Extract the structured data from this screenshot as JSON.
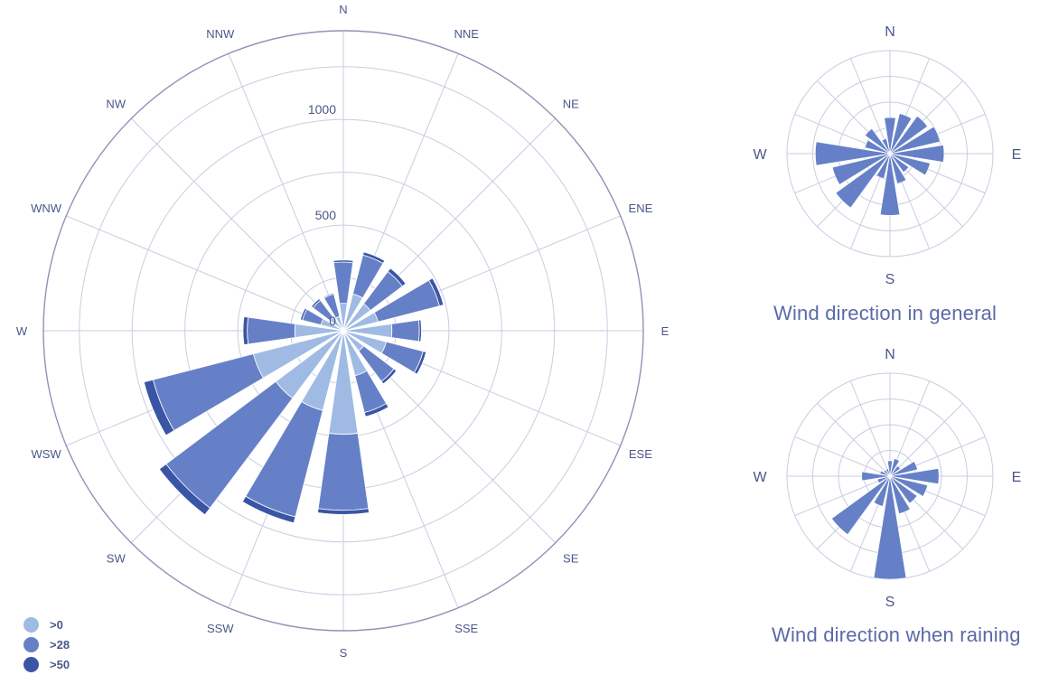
{
  "colors": {
    "band1": "#9fbbe4",
    "band2": "#6680c7",
    "band3": "#3a55a6",
    "grid": "#c9cde0",
    "outer": "#8e93b8",
    "label": "#4a5788"
  },
  "legend": [
    {
      "label": ">0",
      "color": "#9fbbe4"
    },
    {
      "label": ">28",
      "color": "#6680c7"
    },
    {
      "label": ">50",
      "color": "#3a55a6"
    }
  ],
  "captions": {
    "general": "Wind direction in general",
    "rain": "Wind direction when raining"
  },
  "chart_data": [
    {
      "id": "main",
      "type": "stacked-polar-bar",
      "title": "",
      "directions": [
        "N",
        "NNE",
        "NE",
        "ENE",
        "E",
        "ESE",
        "SE",
        "SSE",
        "S",
        "SSW",
        "SW",
        "WSW",
        "W",
        "WNW",
        "NW",
        "NNW"
      ],
      "radial_ticks": [
        "0",
        "500",
        "1000"
      ],
      "rmax": 1420,
      "series": [
        {
          "name": ">0",
          "values": [
            130,
            180,
            160,
            170,
            230,
            210,
            120,
            220,
            490,
            390,
            400,
            440,
            230,
            110,
            80,
            70
          ]
        },
        {
          "name": ">28",
          "values": [
            195,
            190,
            190,
            300,
            130,
            180,
            180,
            180,
            360,
            520,
            650,
            490,
            225,
            90,
            100,
            110
          ]
        },
        {
          "name": ">50",
          "values": [
            10,
            15,
            20,
            20,
            10,
            15,
            15,
            20,
            20,
            30,
            40,
            45,
            20,
            10,
            10,
            5
          ]
        }
      ]
    },
    {
      "id": "general",
      "type": "polar-bar",
      "title": "Wind direction in general",
      "directions": [
        "N",
        "NNE",
        "NE",
        "ENE",
        "E",
        "ESE",
        "SE",
        "SSE",
        "S",
        "SSW",
        "SW",
        "WSW",
        "W",
        "WNW",
        "NW",
        "NNW"
      ],
      "cardinal_labels": [
        "N",
        "E",
        "S",
        "W"
      ],
      "rings": 4,
      "values": [
        1.4,
        1.6,
        1.8,
        2.0,
        2.1,
        1.6,
        0.9,
        1.2,
        2.4,
        1.0,
        2.6,
        2.3,
        2.9,
        1.0,
        1.2,
        0.6
      ],
      "rmax": 4
    },
    {
      "id": "rain",
      "type": "polar-bar",
      "title": "Wind direction when raining",
      "directions": [
        "N",
        "NNE",
        "NE",
        "ENE",
        "E",
        "ESE",
        "SE",
        "SSE",
        "S",
        "SSW",
        "SW",
        "WSW",
        "W",
        "WNW",
        "NW",
        "NNW"
      ],
      "cardinal_labels": [
        "N",
        "E",
        "S",
        "W"
      ],
      "rings": 4,
      "values": [
        0.6,
        0.7,
        0.5,
        1.1,
        1.9,
        1.5,
        1.3,
        1.5,
        4.0,
        1.2,
        2.8,
        0.5,
        1.1,
        0.4,
        0.3,
        0.3
      ],
      "rmax": 4
    }
  ]
}
